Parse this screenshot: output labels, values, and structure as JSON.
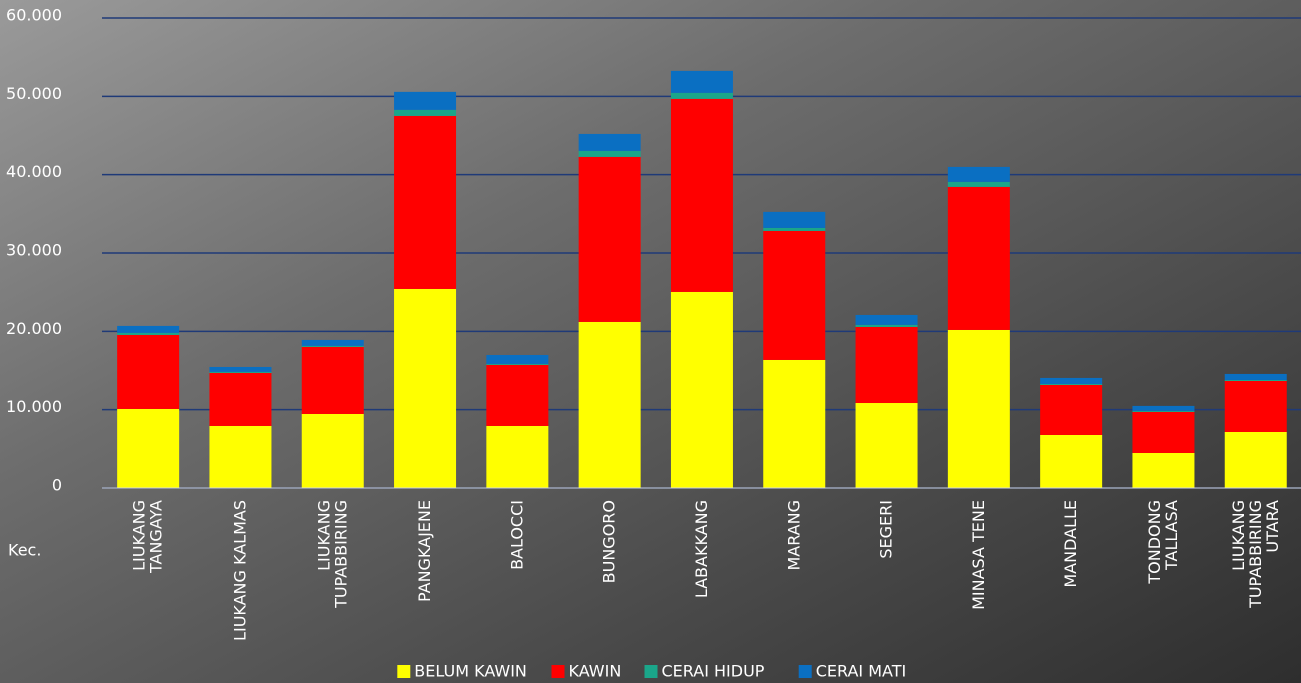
{
  "chart_data": {
    "type": "stacked-bar",
    "categories": [
      "LIUKANG TANGAYA",
      "LIUKANG KALMAS",
      "LIUKANG TUPABBIRING",
      "PANGKAJENE",
      "BALOCCI",
      "BUNGORO",
      "LABAKKANG",
      "MARANG",
      "SEGERI",
      "MINASA TENE",
      "MANDALLE",
      "TONDONG TALLASA",
      "LIUKANG TUPABBIRING UTARA"
    ],
    "x_label": "Kec.",
    "series": [
      {
        "name": "BELUM KAWIN",
        "color": "#ffff00",
        "values": [
          10090,
          7920,
          9450,
          25410,
          7920,
          21200,
          25030,
          16350,
          10850,
          20180,
          6770,
          4470,
          7150
        ]
      },
      {
        "name": "KAWIN",
        "color": "#ff0000",
        "values": [
          9450,
          6770,
          8560,
          22090,
          7790,
          21070,
          24650,
          16470,
          9710,
          18260,
          6380,
          5240,
          6510
        ]
      },
      {
        "name": "CERAI HIDUP",
        "color": "#1aa68a",
        "values": [
          260,
          130,
          130,
          770,
          130,
          760,
          760,
          380,
          260,
          640,
          130,
          130,
          130
        ]
      },
      {
        "name": "CERAI MATI",
        "color": "#0a6fc2",
        "values": [
          890,
          630,
          760,
          2300,
          1140,
          2170,
          2810,
          2050,
          1270,
          1910,
          770,
          640,
          770
        ]
      }
    ],
    "ylim": [
      0,
      60000
    ],
    "yticks": [
      0,
      {
        "value": 10000,
        "label": "10.000"
      },
      {
        "value": 20000,
        "label": "20.000"
      },
      {
        "value": 30000,
        "label": "30.000"
      },
      {
        "value": 40000,
        "label": "40.000"
      },
      {
        "value": 50000,
        "label": "50.000"
      },
      {
        "value": 60000,
        "label": "60.000"
      }
    ],
    "grid": true,
    "grid_color": "#1f3a78",
    "legend": "bottom"
  }
}
